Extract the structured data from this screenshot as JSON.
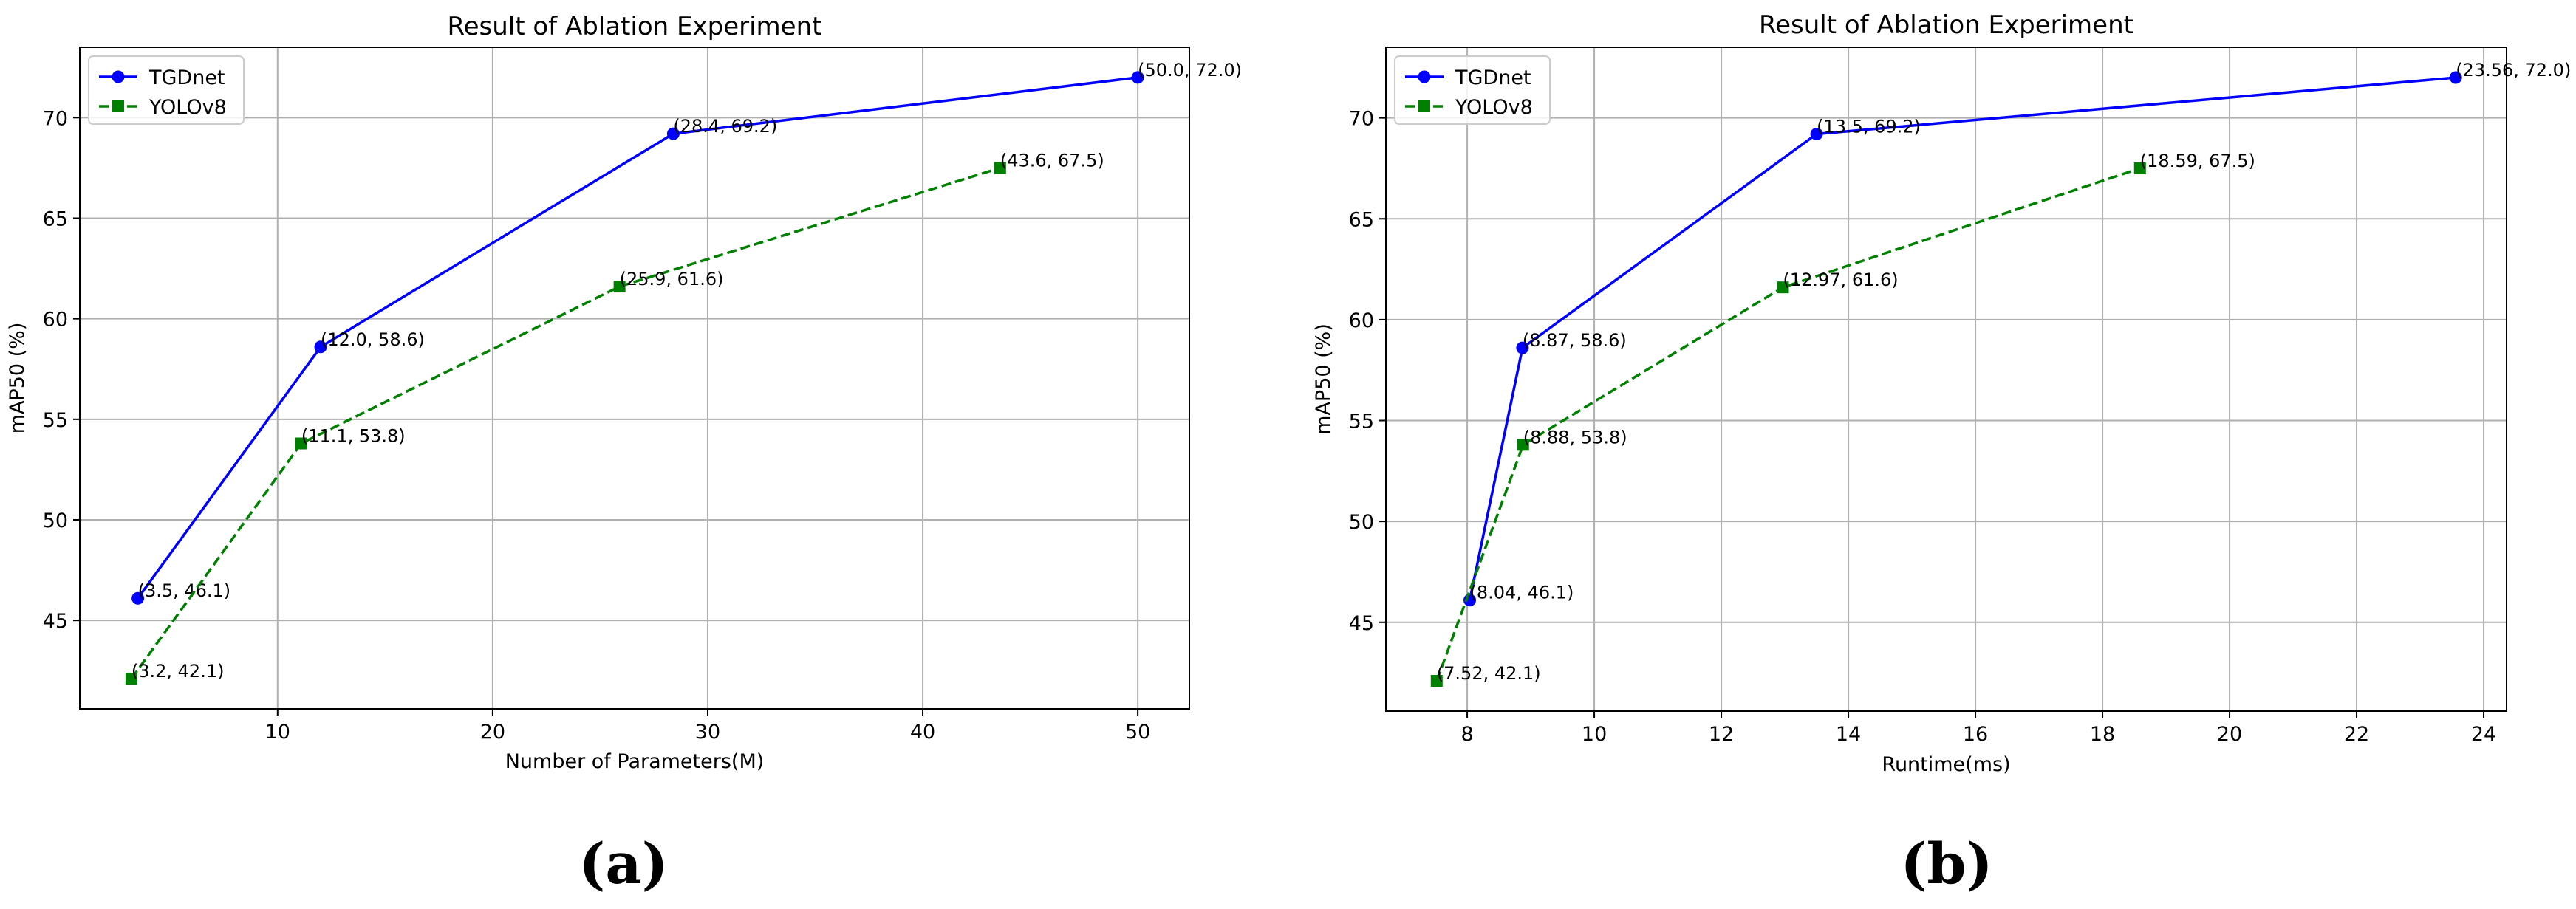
{
  "chart_data": [
    {
      "type": "line",
      "title": "Result of Ablation Experiment",
      "xlabel": "Number of Parameters(M)",
      "ylabel": "mAP50 (%)",
      "xlim": [
        0.8,
        52.4
      ],
      "ylim": [
        40.6,
        73.5
      ],
      "xticks": [
        10,
        20,
        30,
        40,
        50
      ],
      "yticks": [
        45,
        50,
        55,
        60,
        65,
        70
      ],
      "grid": true,
      "legend": "top-left",
      "caption": "(a)",
      "series": [
        {
          "name": "TGDnet",
          "color": "#0000ff",
          "style": "solid",
          "marker": "circle",
          "x": [
            3.5,
            12.0,
            28.4,
            50.0
          ],
          "y": [
            46.1,
            58.6,
            69.2,
            72.0
          ],
          "labels": [
            "(3.5, 46.1)",
            "(12.0, 58.6)",
            "(28.4, 69.2)",
            "(50.0, 72.0)"
          ]
        },
        {
          "name": "YOLOv8",
          "color": "#008000",
          "style": "dashed",
          "marker": "square",
          "x": [
            3.2,
            11.1,
            25.9,
            43.6
          ],
          "y": [
            42.1,
            53.8,
            61.6,
            67.5
          ],
          "labels": [
            "(3.2, 42.1)",
            "(11.1, 53.8)",
            "(25.9, 61.6)",
            "(43.6, 67.5)"
          ]
        }
      ]
    },
    {
      "type": "line",
      "title": "Result of Ablation Experiment",
      "xlabel": "Runtime(ms)",
      "ylabel": "mAP50 (%)",
      "xlim": [
        6.72,
        24.36
      ],
      "ylim": [
        40.6,
        73.5
      ],
      "xticks": [
        8,
        10,
        12,
        14,
        16,
        18,
        20,
        22,
        24
      ],
      "yticks": [
        45,
        50,
        55,
        60,
        65,
        70
      ],
      "grid": true,
      "legend": "top-left",
      "caption": "(b)",
      "series": [
        {
          "name": "TGDnet",
          "color": "#0000ff",
          "style": "solid",
          "marker": "circle",
          "x": [
            8.04,
            8.87,
            13.5,
            23.56
          ],
          "y": [
            46.1,
            58.6,
            69.2,
            72.0
          ],
          "labels": [
            "(8.04, 46.1)",
            "(8.87, 58.6)",
            "(13.5, 69.2)",
            "(23.56, 72.0)"
          ]
        },
        {
          "name": "YOLOv8",
          "color": "#008000",
          "style": "dashed",
          "marker": "square",
          "x": [
            7.52,
            8.88,
            12.97,
            18.59
          ],
          "y": [
            42.1,
            53.8,
            61.6,
            67.5
          ],
          "labels": [
            "(7.52, 42.1)",
            "(8.88, 53.8)",
            "(12.97, 61.6)",
            "(18.59, 67.5)"
          ]
        }
      ]
    }
  ]
}
